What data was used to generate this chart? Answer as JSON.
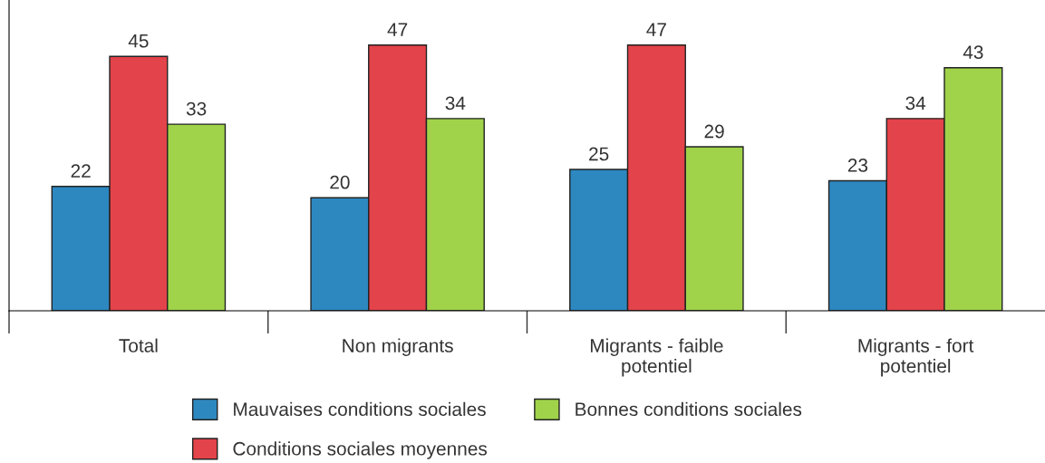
{
  "chart_data": {
    "type": "bar",
    "categories": [
      "Total",
      "Non migrants",
      "Migrants - faible\npotentiel",
      "Migrants - fort\npotentiel"
    ],
    "series": [
      {
        "name": "Mauvaises conditions sociales",
        "color": "#2e88c0",
        "values": [
          22,
          20,
          25,
          23
        ]
      },
      {
        "name": "Conditions sociales moyennes",
        "color": "#e3434a",
        "values": [
          45,
          47,
          47,
          34
        ]
      },
      {
        "name": "Bonnes conditions sociales",
        "color": "#a0d34a",
        "values": [
          33,
          34,
          29,
          43
        ]
      }
    ],
    "data_labels": true,
    "grid": false,
    "legend": "bottom"
  }
}
